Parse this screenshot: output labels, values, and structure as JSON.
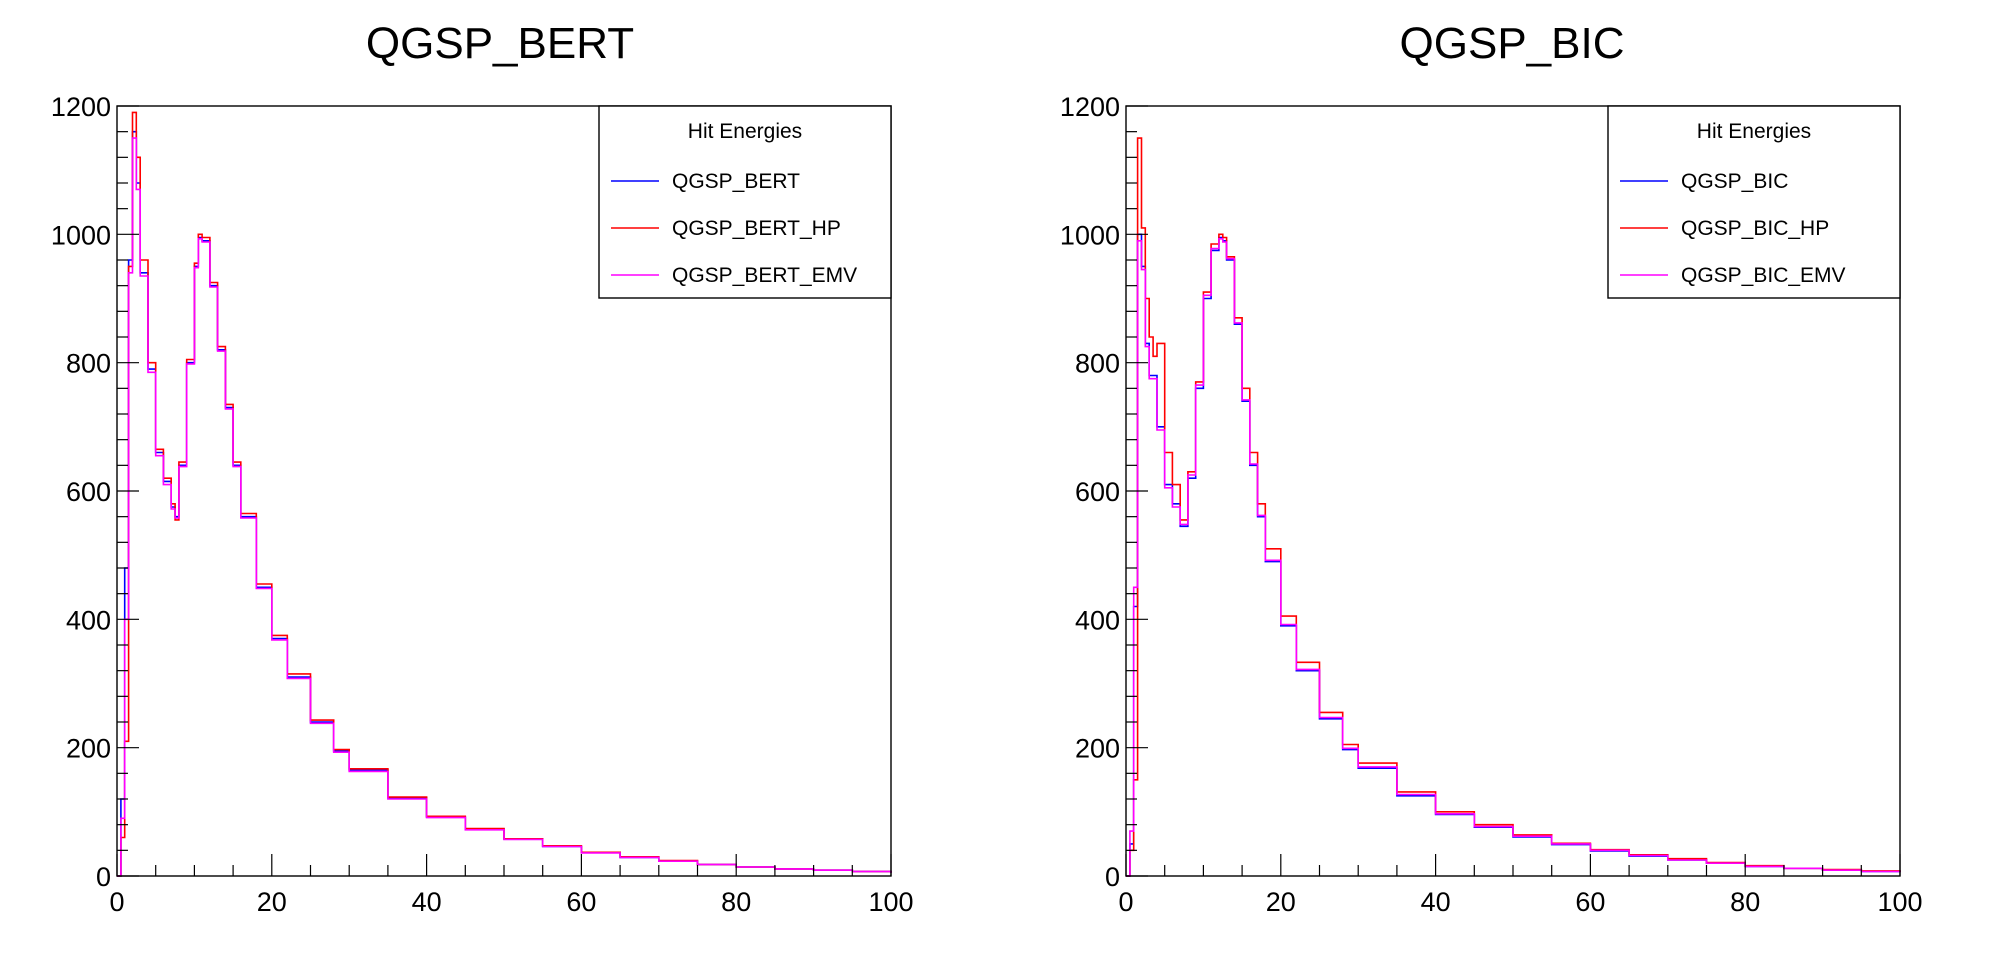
{
  "chart_data": [
    {
      "type": "line",
      "title": "QGSP_BERT",
      "xlabel": "",
      "ylabel": "",
      "xlim": [
        0,
        100
      ],
      "ylim": [
        0,
        1200
      ],
      "x_ticks": [
        0,
        20,
        40,
        60,
        80,
        100
      ],
      "y_ticks": [
        0,
        200,
        400,
        600,
        800,
        1000,
        1200
      ],
      "grid": false,
      "legend": {
        "title": "Hit Energies",
        "placement": "top-right",
        "entries": [
          "QGSP_BERT",
          "QGSP_BERT_HP",
          "QGSP_BERT_EMV"
        ]
      },
      "series": [
        {
          "name": "QGSP_BERT",
          "color": "#0000ff",
          "x": [
            0,
            0.5,
            1,
            1.5,
            2,
            2.5,
            3,
            4,
            5,
            6,
            7,
            7.5,
            8,
            9,
            10,
            10.5,
            11,
            12,
            13,
            14,
            15,
            16,
            18,
            20,
            22,
            25,
            28,
            30,
            35,
            40,
            45,
            50,
            55,
            60,
            65,
            70,
            75,
            80,
            85,
            90,
            95,
            100
          ],
          "y": [
            0,
            120,
            480,
            960,
            1160,
            1080,
            940,
            790,
            660,
            615,
            575,
            560,
            640,
            800,
            950,
            995,
            990,
            920,
            820,
            730,
            640,
            560,
            450,
            370,
            310,
            240,
            195,
            165,
            122,
            92,
            73,
            58,
            46,
            37,
            29,
            23,
            18,
            14,
            11,
            9,
            7,
            5
          ]
        },
        {
          "name": "QGSP_BERT_HP",
          "color": "#ff0000",
          "x": [
            0,
            0.5,
            1,
            1.5,
            2,
            2.5,
            3,
            4,
            5,
            6,
            7,
            7.5,
            8,
            9,
            10,
            10.5,
            11,
            12,
            13,
            14,
            15,
            16,
            18,
            20,
            22,
            25,
            28,
            30,
            35,
            40,
            45,
            50,
            55,
            60,
            65,
            70,
            75,
            80,
            85,
            90,
            95,
            100
          ],
          "y": [
            0,
            60,
            210,
            950,
            1190,
            1120,
            960,
            800,
            665,
            620,
            580,
            555,
            645,
            805,
            955,
            1000,
            995,
            925,
            825,
            735,
            645,
            565,
            455,
            375,
            315,
            243,
            197,
            167,
            123,
            93,
            74,
            58,
            47,
            37,
            30,
            24,
            18,
            14,
            11,
            9,
            7,
            5
          ]
        },
        {
          "name": "QGSP_BERT_EMV",
          "color": "#ff00ff",
          "x": [
            0,
            0.5,
            1,
            1.5,
            2,
            2.5,
            3,
            4,
            5,
            6,
            7,
            7.5,
            8,
            9,
            10,
            10.5,
            11,
            12,
            13,
            14,
            15,
            16,
            18,
            20,
            22,
            25,
            28,
            30,
            35,
            40,
            45,
            50,
            55,
            60,
            65,
            70,
            75,
            80,
            85,
            90,
            95,
            100
          ],
          "y": [
            0,
            90,
            400,
            940,
            1150,
            1070,
            935,
            785,
            655,
            610,
            572,
            558,
            638,
            798,
            948,
            993,
            988,
            918,
            818,
            728,
            638,
            558,
            448,
            368,
            308,
            238,
            193,
            163,
            120,
            91,
            72,
            57,
            46,
            36,
            29,
            23,
            18,
            14,
            11,
            9,
            7,
            5
          ]
        }
      ]
    },
    {
      "type": "line",
      "title": "QGSP_BIC",
      "xlabel": "",
      "ylabel": "",
      "xlim": [
        0,
        100
      ],
      "ylim": [
        0,
        1200
      ],
      "x_ticks": [
        0,
        20,
        40,
        60,
        80,
        100
      ],
      "y_ticks": [
        0,
        200,
        400,
        600,
        800,
        1000,
        1200
      ],
      "grid": false,
      "legend": {
        "title": "Hit Energies",
        "placement": "top-right",
        "entries": [
          "QGSP_BIC",
          "QGSP_BIC_HP",
          "QGSP_BIC_EMV"
        ]
      },
      "series": [
        {
          "name": "QGSP_BIC",
          "color": "#0000ff",
          "x": [
            0,
            0.5,
            1,
            1.5,
            2,
            2.5,
            3,
            4,
            5,
            6,
            7,
            8,
            9,
            10,
            11,
            12,
            12.5,
            13,
            14,
            15,
            16,
            17,
            18,
            20,
            22,
            25,
            28,
            30,
            35,
            40,
            45,
            50,
            55,
            60,
            65,
            70,
            75,
            80,
            85,
            90,
            95,
            100
          ],
          "y": [
            0,
            50,
            420,
            1000,
            950,
            830,
            780,
            700,
            610,
            580,
            545,
            620,
            760,
            900,
            975,
            995,
            990,
            960,
            860,
            740,
            640,
            560,
            490,
            390,
            320,
            245,
            197,
            168,
            125,
            96,
            76,
            61,
            49,
            39,
            31,
            25,
            20,
            15,
            12,
            9,
            7,
            6
          ]
        },
        {
          "name": "QGSP_BIC_HP",
          "color": "#ff0000",
          "x": [
            0,
            0.5,
            1,
            1.5,
            2,
            2.5,
            3,
            3.5,
            4,
            5,
            6,
            7,
            8,
            9,
            10,
            11,
            12,
            12.5,
            13,
            14,
            15,
            16,
            17,
            18,
            20,
            22,
            25,
            28,
            30,
            35,
            40,
            45,
            50,
            55,
            60,
            65,
            70,
            75,
            80,
            85,
            90,
            95,
            100
          ],
          "y": [
            0,
            40,
            150,
            1150,
            1010,
            900,
            840,
            810,
            830,
            660,
            610,
            555,
            630,
            770,
            910,
            985,
            1000,
            995,
            965,
            870,
            760,
            660,
            580,
            510,
            405,
            333,
            255,
            205,
            176,
            131,
            100,
            80,
            64,
            51,
            41,
            33,
            27,
            21,
            16,
            12,
            10,
            8,
            6
          ]
        },
        {
          "name": "QGSP_BIC_EMV",
          "color": "#ff00ff",
          "x": [
            0,
            0.5,
            1,
            1.5,
            2,
            2.5,
            3,
            4,
            5,
            6,
            7,
            8,
            9,
            10,
            11,
            12,
            12.5,
            13,
            14,
            15,
            16,
            17,
            18,
            20,
            22,
            25,
            28,
            30,
            35,
            40,
            45,
            50,
            55,
            60,
            65,
            70,
            75,
            80,
            85,
            90,
            95,
            100
          ],
          "y": [
            0,
            70,
            450,
            990,
            945,
            825,
            775,
            695,
            605,
            575,
            548,
            625,
            765,
            905,
            978,
            993,
            988,
            962,
            862,
            742,
            642,
            562,
            492,
            392,
            322,
            247,
            199,
            170,
            127,
            97,
            77,
            62,
            50,
            40,
            32,
            25,
            20,
            15,
            12,
            9,
            7,
            6
          ]
        }
      ]
    }
  ]
}
